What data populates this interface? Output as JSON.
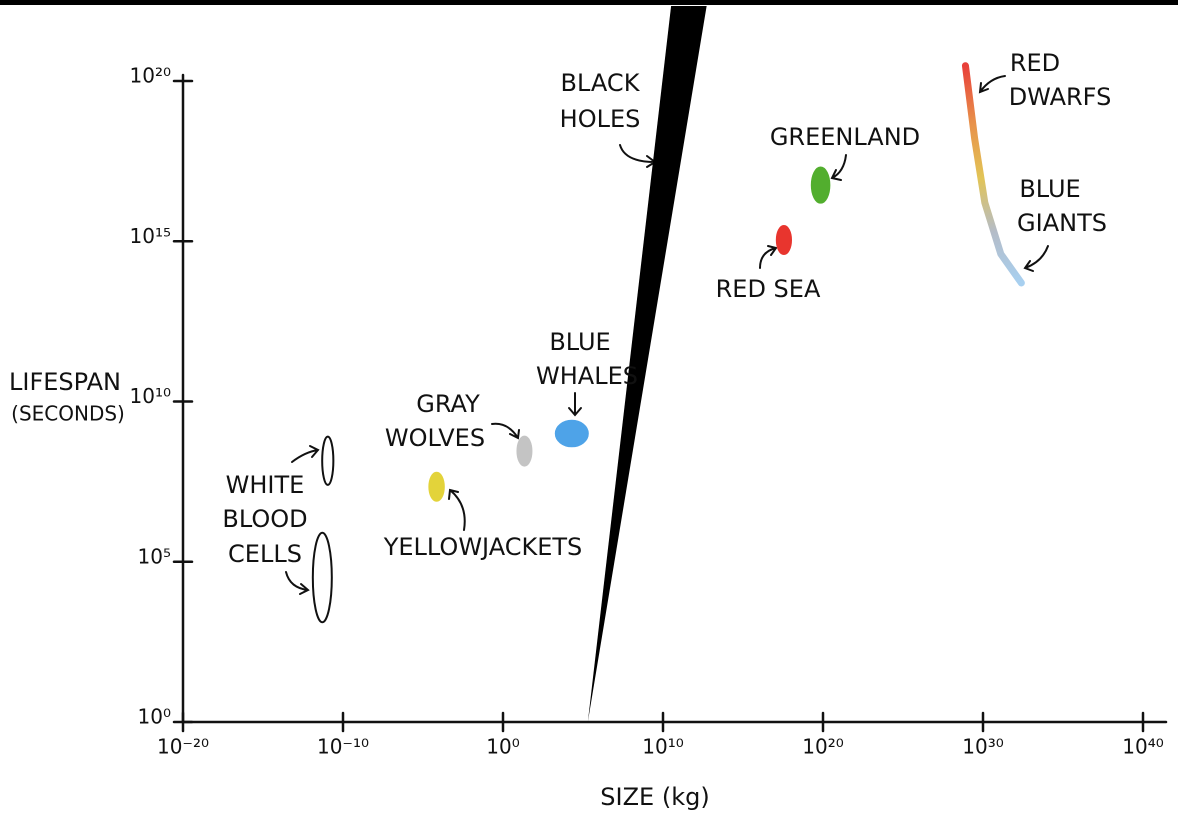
{
  "chart_data": {
    "type": "scatter",
    "x_label": "SIZE (kg)",
    "y_label": [
      "LIFESPAN",
      "(SECONDS)"
    ],
    "xscale": "log",
    "yscale": "log",
    "xlim": [
      1e-20,
      1e+40
    ],
    "ylim": [
      1,
      1e+20
    ],
    "xticks": [
      {
        "value": 1e-20,
        "label": "10⁻²⁰"
      },
      {
        "value": 1e-10,
        "label": "10⁻¹⁰"
      },
      {
        "value": 1,
        "label": "10⁰"
      },
      {
        "value": 10000000000.0,
        "label": "10¹⁰"
      },
      {
        "value": 1e+20,
        "label": "10²⁰"
      },
      {
        "value": 1e+30,
        "label": "10³⁰"
      },
      {
        "value": 1e+40,
        "label": "10⁴⁰"
      }
    ],
    "yticks": [
      {
        "value": 1,
        "label": "10⁰"
      },
      {
        "value": 100000.0,
        "label": "10⁵"
      },
      {
        "value": 10000000000.0,
        "label": "10¹⁰"
      },
      {
        "value": 1000000000000000.0,
        "label": "10¹⁵"
      },
      {
        "value": 1e+20,
        "label": "10²⁰"
      }
    ],
    "regions": [
      {
        "label": [
          "WHITE",
          "BLOOD",
          "CELLS"
        ],
        "color": "#ffffff",
        "blobs": [
          {
            "x": [
              5e-12,
              2.5e-11
            ],
            "y": [
              25000000.0,
              800000000.0
            ]
          },
          {
            "x": [
              1.3e-12,
              2e-11
            ],
            "y": [
              1300.0,
              800000.0
            ]
          }
        ]
      },
      {
        "label": [
          "YELLOWJACKETS"
        ],
        "color": "#e3d33a",
        "blobs": [
          {
            "x": [
              2.5e-05,
              0.0002
            ],
            "y": [
              8000000.0,
              60000000.0
            ]
          }
        ]
      },
      {
        "label": [
          "GRAY",
          "WOLVES"
        ],
        "color": "#c4c4c4",
        "blobs": [
          {
            "x": [
              8,
              60
            ],
            "y": [
              100000000.0,
              800000000.0
            ]
          }
        ]
      },
      {
        "label": [
          "BLUE",
          "WHALES"
        ],
        "color": "#4ea3e8",
        "blobs": [
          {
            "x": [
              2000,
              200000.0
            ],
            "y": [
              400000000.0,
              2500000000.0
            ]
          }
        ]
      },
      {
        "label": [
          "RED SEA"
        ],
        "color": "#e8352e",
        "blobs": [
          {
            "x": [
              1.3e+17,
              1e+18
            ],
            "y": [
              400000000000000.0,
              3000000000000000.0
            ]
          }
        ]
      },
      {
        "label": [
          "GREENLAND"
        ],
        "color": "#52ae2e",
        "blobs": [
          {
            "x": [
              2e+19,
              2.5e+20
            ],
            "y": [
              1.6e+16,
              2e+17
            ]
          }
        ]
      },
      {
        "label": [
          "BLACK",
          "HOLES"
        ],
        "color": "#000000",
        "polygon": {
          "x": [
            200000.0,
            36000000000.0,
            6300000000000.0
          ],
          "y": [
            1,
            3.6e+22,
            3.6e+22
          ]
        }
      }
    ],
    "stars": {
      "labels": [
        [
          "RED",
          "DWARFS"
        ],
        [
          "BLUE",
          "GIANTS"
        ]
      ],
      "x": [
        8e+28,
        3e+29,
        1.3e+30,
        1.3e+31,
        2.5e+32
      ],
      "y": [
        3e+20,
        1.6e+18,
        1.6e+16,
        400000000000000.0,
        50000000000000.0
      ],
      "colors": [
        "#e8403a",
        "#e8904a",
        "#e2c456",
        "#b4bcc8",
        "#a8d0f0"
      ]
    }
  }
}
